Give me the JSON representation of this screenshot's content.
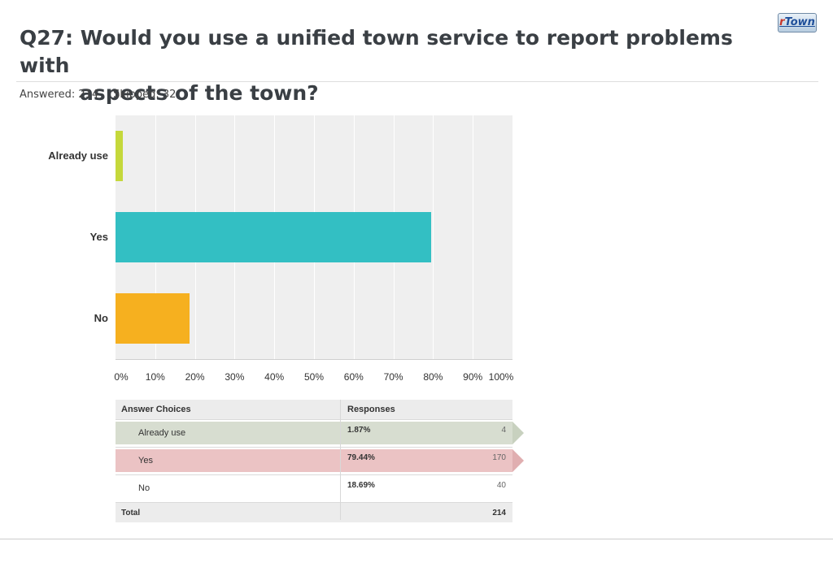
{
  "header": {
    "title_line1": "Q27: Would you use a unified town service to report problems with",
    "title_line2": "aspects of the town?",
    "answered": "Answered: 214",
    "skipped": "Skipped: 32",
    "logo_prefix": "r",
    "logo_text": "Town"
  },
  "chart_data": {
    "type": "bar",
    "orientation": "horizontal",
    "categories": [
      "Already use",
      "Yes",
      "No"
    ],
    "values": [
      1.87,
      79.44,
      18.69
    ],
    "colors": [
      "#c5d83b",
      "#33bfc3",
      "#f6b01f"
    ],
    "xlim": [
      0,
      100
    ],
    "x_ticks": [
      "0%",
      "10%",
      "20%",
      "30%",
      "40%",
      "50%",
      "60%",
      "70%",
      "80%",
      "90%",
      "100%"
    ],
    "grid": true
  },
  "table": {
    "col_choices": "Answer Choices",
    "col_responses": "Responses",
    "rows": [
      {
        "choice": "Already use",
        "percent": "1.87%",
        "count": "4",
        "fill": 1.0,
        "color": "#d7ddd0",
        "arrow": "#c8d1bf"
      },
      {
        "choice": "Yes",
        "percent": "79.44%",
        "count": "170",
        "fill": 1.0,
        "color": "#ebc3c4",
        "arrow": "#e0aeb0"
      },
      {
        "choice": "No",
        "percent": "18.69%",
        "count": "40",
        "fill": 0,
        "color": "#ffffff",
        "arrow": "#ffffff"
      }
    ],
    "total_label": "Total",
    "total_count": "214"
  }
}
